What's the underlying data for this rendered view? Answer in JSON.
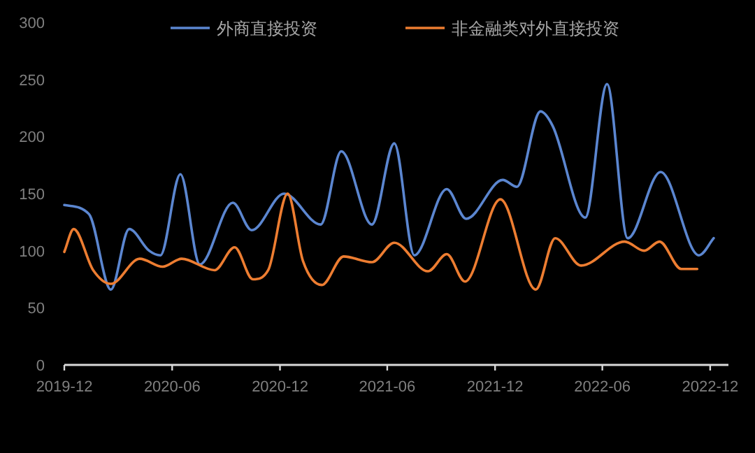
{
  "chart_data": {
    "type": "line",
    "legend": "top",
    "grid": false,
    "xlim": [
      "2019-12",
      "2023-01"
    ],
    "xticks": [
      "2019-12",
      "2020-06",
      "2020-12",
      "2021-06",
      "2021-12",
      "2022-06",
      "2022-12"
    ],
    "ylim": [
      0,
      300
    ],
    "yticks": [
      0,
      50,
      100,
      150,
      200,
      250,
      300
    ],
    "series": [
      {
        "name": "外商直接投资",
        "color": "#5b86d0",
        "x": [
          "2019-12-01",
          "2020-01-12",
          "2020-02-18",
          "2020-03-20",
          "2020-04-23",
          "2020-05-12",
          "2020-06-15",
          "2020-07-18",
          "2020-09-12",
          "2020-10-14",
          "2020-12-08",
          "2021-02-08",
          "2021-03-15",
          "2021-05-06",
          "2021-06-13",
          "2021-07-17",
          "2021-09-10",
          "2021-10-13",
          "2021-12-14",
          "2022-01-07",
          "2022-02-16",
          "2022-03-09",
          "2022-05-03",
          "2022-06-09",
          "2022-07-14",
          "2022-09-08",
          "2022-11-12",
          "2022-12-07"
        ],
        "values": [
          140,
          132,
          66,
          119,
          100,
          96,
          167,
          88,
          142,
          118,
          150,
          123,
          187,
          123,
          194,
          96,
          154,
          128,
          162,
          156,
          222,
          209,
          129,
          246,
          111,
          169,
          96,
          111
        ]
      },
      {
        "name": "非金融类对外直接投资",
        "color": "#ed7d31",
        "x": [
          "2019-12-01",
          "2019-12-17",
          "2020-01-19",
          "2020-02-18",
          "2020-04-07",
          "2020-05-16",
          "2020-06-17",
          "2020-08-12",
          "2020-09-15",
          "2020-10-16",
          "2020-11-11",
          "2020-12-14",
          "2021-01-09",
          "2021-02-10",
          "2021-03-19",
          "2021-05-06",
          "2021-06-13",
          "2021-08-09",
          "2021-09-10",
          "2021-10-11",
          "2021-12-10",
          "2022-02-08",
          "2022-03-13",
          "2022-04-26",
          "2022-07-09",
          "2022-08-11",
          "2022-09-06",
          "2022-10-13",
          "2022-11-09"
        ],
        "values": [
          99,
          119,
          83,
          71,
          93,
          86,
          93,
          83,
          103,
          75,
          83,
          150,
          91,
          70,
          95,
          90,
          107,
          82,
          97,
          73,
          145,
          66,
          111,
          87,
          108,
          100,
          108,
          84,
          84
        ]
      }
    ]
  }
}
